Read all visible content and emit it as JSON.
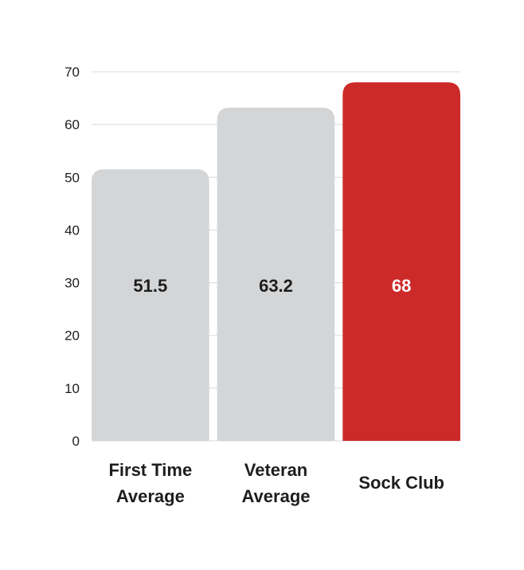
{
  "chart_data": {
    "type": "bar",
    "categories": [
      "First Time Average",
      "Veteran Average",
      "Sock Club"
    ],
    "category_label_lines": [
      [
        "First Time",
        "Average"
      ],
      [
        "Veteran",
        "Average"
      ],
      [
        "Sock Club"
      ]
    ],
    "values": [
      51.5,
      63.2,
      68
    ],
    "value_labels": [
      "51.5",
      "63.2",
      "68"
    ],
    "ylim": [
      0,
      70
    ],
    "yticks": [
      0,
      10,
      20,
      30,
      40,
      50,
      60,
      70
    ],
    "title": "",
    "xlabel": "",
    "ylabel": "",
    "grid": true,
    "legend": "none",
    "colors": {
      "bars": [
        "#d4d5d7",
        "#d4d5d7",
        "#cc2a29"
      ],
      "value_text": [
        "#1e1e1e",
        "#1e1e1e",
        "#ffffff"
      ],
      "gridline": "#dadada",
      "text": "#1e1e1e",
      "background": "#ffffff"
    }
  }
}
